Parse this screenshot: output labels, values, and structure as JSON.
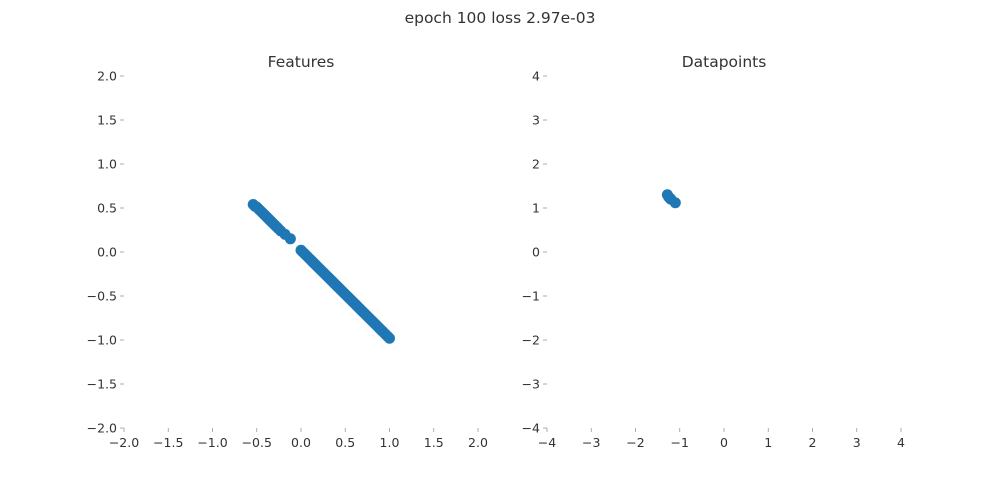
{
  "figure": {
    "suptitle": "epoch 100 loss 2.97e-03"
  },
  "chart_data": [
    {
      "type": "scatter",
      "title": "Features",
      "xlabel": "",
      "ylabel": "",
      "xlim": [
        -2,
        2
      ],
      "ylim": [
        -2,
        2
      ],
      "xticks": [
        -2,
        -1.5,
        -1,
        -0.5,
        0,
        0.5,
        1,
        1.5,
        2
      ],
      "yticks": [
        -2,
        -1.5,
        -1,
        -0.5,
        0,
        0.5,
        1,
        1.5,
        2
      ],
      "xtick_labels": [
        "−2.0",
        "−1.5",
        "−1.0",
        "−0.5",
        "0.0",
        "0.5",
        "1.0",
        "1.5",
        "2.0"
      ],
      "ytick_labels": [
        "−2.0",
        "−1.5",
        "−1.0",
        "−0.5",
        "0.0",
        "0.5",
        "1.0",
        "1.5",
        "2.0"
      ],
      "grid": false,
      "color": "#1f77b4",
      "points": [
        [
          -0.54,
          0.54
        ],
        [
          -0.52,
          0.52
        ],
        [
          -0.5,
          0.51
        ],
        [
          -0.48,
          0.49
        ],
        [
          -0.46,
          0.47
        ],
        [
          -0.44,
          0.45
        ],
        [
          -0.42,
          0.43
        ],
        [
          -0.4,
          0.41
        ],
        [
          -0.38,
          0.39
        ],
        [
          -0.36,
          0.37
        ],
        [
          -0.34,
          0.35
        ],
        [
          -0.32,
          0.33
        ],
        [
          -0.3,
          0.31
        ],
        [
          -0.28,
          0.29
        ],
        [
          -0.26,
          0.27
        ],
        [
          -0.23,
          0.24
        ],
        [
          -0.18,
          0.2
        ],
        [
          -0.12,
          0.15
        ],
        [
          0.0,
          0.02
        ],
        [
          0.02,
          0.0
        ],
        [
          0.04,
          -0.02
        ],
        [
          0.06,
          -0.04
        ],
        [
          0.08,
          -0.06
        ],
        [
          0.1,
          -0.08
        ],
        [
          0.12,
          -0.1
        ],
        [
          0.14,
          -0.12
        ],
        [
          0.16,
          -0.14
        ],
        [
          0.18,
          -0.16
        ],
        [
          0.2,
          -0.18
        ],
        [
          0.22,
          -0.2
        ],
        [
          0.24,
          -0.22
        ],
        [
          0.26,
          -0.24
        ],
        [
          0.28,
          -0.26
        ],
        [
          0.3,
          -0.28
        ],
        [
          0.32,
          -0.3
        ],
        [
          0.34,
          -0.32
        ],
        [
          0.36,
          -0.34
        ],
        [
          0.38,
          -0.36
        ],
        [
          0.4,
          -0.38
        ],
        [
          0.42,
          -0.4
        ],
        [
          0.44,
          -0.42
        ],
        [
          0.46,
          -0.44
        ],
        [
          0.48,
          -0.46
        ],
        [
          0.5,
          -0.48
        ],
        [
          0.52,
          -0.5
        ],
        [
          0.54,
          -0.52
        ],
        [
          0.56,
          -0.54
        ],
        [
          0.58,
          -0.56
        ],
        [
          0.6,
          -0.58
        ],
        [
          0.62,
          -0.6
        ],
        [
          0.64,
          -0.62
        ],
        [
          0.66,
          -0.64
        ],
        [
          0.68,
          -0.66
        ],
        [
          0.7,
          -0.68
        ],
        [
          0.72,
          -0.7
        ],
        [
          0.74,
          -0.72
        ],
        [
          0.76,
          -0.74
        ],
        [
          0.78,
          -0.76
        ],
        [
          0.8,
          -0.78
        ],
        [
          0.82,
          -0.8
        ],
        [
          0.84,
          -0.82
        ],
        [
          0.86,
          -0.84
        ],
        [
          0.88,
          -0.86
        ],
        [
          0.9,
          -0.88
        ],
        [
          0.92,
          -0.9
        ],
        [
          0.94,
          -0.92
        ],
        [
          0.96,
          -0.94
        ],
        [
          0.98,
          -0.96
        ],
        [
          1.0,
          -0.98
        ]
      ]
    },
    {
      "type": "scatter",
      "title": "Datapoints",
      "xlabel": "",
      "ylabel": "",
      "xlim": [
        -4,
        4
      ],
      "ylim": [
        -4,
        4
      ],
      "xticks": [
        -4,
        -3,
        -2,
        -1,
        0,
        1,
        2,
        3,
        4
      ],
      "yticks": [
        -4,
        -3,
        -2,
        -1,
        0,
        1,
        2,
        3,
        4
      ],
      "xtick_labels": [
        "−4",
        "−3",
        "−2",
        "−1",
        "0",
        "1",
        "2",
        "3",
        "4"
      ],
      "ytick_labels": [
        "−4",
        "−3",
        "−2",
        "−1",
        "0",
        "1",
        "2",
        "3",
        "4"
      ],
      "grid": false,
      "color": "#1f77b4",
      "points": [
        [
          -1.28,
          1.3
        ],
        [
          -1.25,
          1.25
        ],
        [
          -1.22,
          1.22
        ],
        [
          -1.2,
          1.2
        ],
        [
          -1.1,
          1.12
        ]
      ]
    }
  ]
}
